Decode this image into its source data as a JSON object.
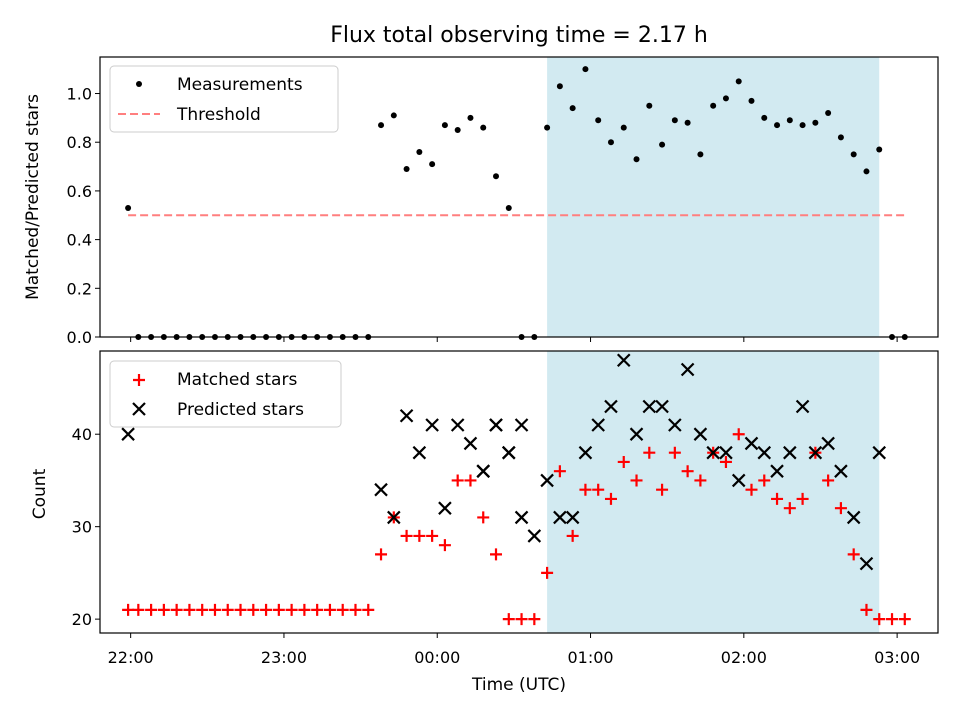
{
  "chart_data": [
    {
      "type": "scatter",
      "title": "Flux total observing time = 2.17 h",
      "xlabel": "",
      "ylabel": "Matched/Predicted stars",
      "ylim": [
        0,
        1.15
      ],
      "xlim": [
        "21:48",
        "03:16"
      ],
      "y_ticks": [
        "0.0",
        "0.2",
        "0.4",
        "0.6",
        "0.8",
        "1.0"
      ],
      "legend": {
        "placement": "top-left",
        "entries": [
          "Measurements",
          "Threshold"
        ]
      },
      "highlight_span": {
        "from": "00:43",
        "to": "02:53",
        "color": "#add8e6"
      },
      "series": [
        {
          "name": "Measurements",
          "color": "#000000",
          "x": [
            "21:59",
            "22:03",
            "22:08",
            "22:13",
            "22:18",
            "22:23",
            "22:28",
            "22:33",
            "22:38",
            "22:43",
            "22:48",
            "22:53",
            "22:58",
            "23:03",
            "23:08",
            "23:13",
            "23:18",
            "23:23",
            "23:28",
            "23:33",
            "23:38",
            "23:43",
            "23:48",
            "23:53",
            "23:58",
            "24:03",
            "24:08",
            "24:13",
            "24:18",
            "24:23",
            "24:28",
            "24:33",
            "24:38",
            "24:43",
            "24:48",
            "24:53",
            "24:58",
            "25:03",
            "25:08",
            "25:13",
            "25:18",
            "25:23",
            "25:28",
            "25:33",
            "25:38",
            "25:43",
            "25:48",
            "25:53",
            "25:58",
            "26:03",
            "26:08",
            "26:13",
            "26:18",
            "26:23",
            "26:28",
            "26:33",
            "26:38",
            "26:43",
            "26:48",
            "26:53",
            "26:58",
            "27:03"
          ],
          "y": [
            0.53,
            0,
            0,
            0,
            0,
            0,
            0,
            0,
            0,
            0,
            0,
            0,
            0,
            0,
            0,
            0,
            0,
            0,
            0,
            0,
            0.87,
            0.91,
            0.69,
            0.76,
            0.71,
            0.87,
            0.85,
            0.9,
            0.86,
            0.66,
            0.53,
            0,
            0,
            0.86,
            1.03,
            0.94,
            1.1,
            0.89,
            0.8,
            0.86,
            0.73,
            0.95,
            0.79,
            0.89,
            0.88,
            0.75,
            0.95,
            0.98,
            1.05,
            0.97,
            0.9,
            0.87,
            0.89,
            0.87,
            0.88,
            0.92,
            0.82,
            0.75,
            0.68,
            0.77,
            0,
            0
          ]
        },
        {
          "name": "Threshold",
          "color": "#ff7f7f",
          "x": [
            "21:59",
            "27:03"
          ],
          "y": [
            0.5,
            0.5
          ]
        }
      ]
    },
    {
      "type": "scatter",
      "title": "",
      "xlabel": "Time (UTC)",
      "ylabel": "Count",
      "ylim": [
        18.5,
        49
      ],
      "xlim": [
        "21:48",
        "03:16"
      ],
      "y_ticks": [
        "20",
        "30",
        "40"
      ],
      "x_ticks": [
        "22:00",
        "23:00",
        "00:00",
        "01:00",
        "02:00",
        "03:00"
      ],
      "legend": {
        "placement": "top-left",
        "entries": [
          "Matched stars",
          "Predicted stars"
        ]
      },
      "highlight_span": {
        "from": "00:43",
        "to": "02:53",
        "color": "#add8e6"
      },
      "series": [
        {
          "name": "Matched stars",
          "color": "#ff0000",
          "x": [
            "21:59",
            "22:03",
            "22:08",
            "22:13",
            "22:18",
            "22:23",
            "22:28",
            "22:33",
            "22:38",
            "22:43",
            "22:48",
            "22:53",
            "22:58",
            "23:03",
            "23:08",
            "23:13",
            "23:18",
            "23:23",
            "23:28",
            "23:33",
            "23:38",
            "23:43",
            "23:48",
            "23:53",
            "23:58",
            "24:03",
            "24:08",
            "24:13",
            "24:18",
            "24:23",
            "24:28",
            "24:33",
            "24:38",
            "24:43",
            "24:48",
            "24:53",
            "24:58",
            "25:03",
            "25:08",
            "25:13",
            "25:18",
            "25:23",
            "25:28",
            "25:33",
            "25:38",
            "25:43",
            "25:48",
            "25:53",
            "25:58",
            "26:03",
            "26:08",
            "26:13",
            "26:18",
            "26:23",
            "26:28",
            "26:33",
            "26:38",
            "26:43",
            "26:48",
            "26:53",
            "26:58",
            "27:03"
          ],
          "y": [
            21,
            21,
            21,
            21,
            21,
            21,
            21,
            21,
            21,
            21,
            21,
            21,
            21,
            21,
            21,
            21,
            21,
            21,
            21,
            21,
            27,
            31,
            29,
            29,
            29,
            28,
            35,
            35,
            31,
            27,
            20,
            20,
            20,
            25,
            36,
            29,
            34,
            34,
            33,
            37,
            35,
            38,
            34,
            38,
            36,
            35,
            38,
            37,
            40,
            34,
            35,
            33,
            32,
            33,
            38,
            35,
            32,
            27,
            21,
            20,
            20,
            20
          ]
        },
        {
          "name": "Predicted stars",
          "color": "#000000",
          "x": [
            "21:59",
            "24:18",
            "24:23",
            "24:28",
            "24:33",
            "24:38",
            "24:43",
            "24:48",
            "24:53",
            "24:58",
            "25:03",
            "25:08",
            "25:13",
            "25:18",
            "25:23",
            "25:28",
            "25:33",
            "25:38",
            "25:43",
            "25:48",
            "25:53",
            "25:58",
            "26:03",
            "26:08",
            "26:13",
            "26:18",
            "26:23",
            "26:28",
            "26:33",
            "26:38",
            "26:43",
            "26:48",
            "26:53",
            "23:48",
            "23:53",
            "23:58",
            "24:03",
            "24:08",
            "24:13",
            "24:18",
            "24:23",
            "24:28",
            "24:33",
            "23:38",
            "23:43"
          ],
          "y": [
            40,
            36,
            41,
            38,
            41,
            29,
            35,
            31,
            31,
            38,
            41,
            43,
            48,
            40,
            43,
            43,
            41,
            47,
            40,
            38,
            38,
            35,
            39,
            38,
            36,
            38,
            43,
            38,
            39,
            36,
            31,
            26,
            38,
            42,
            38,
            41,
            32,
            41,
            39,
            36,
            41,
            38,
            31,
            34,
            31
          ]
        }
      ]
    }
  ]
}
